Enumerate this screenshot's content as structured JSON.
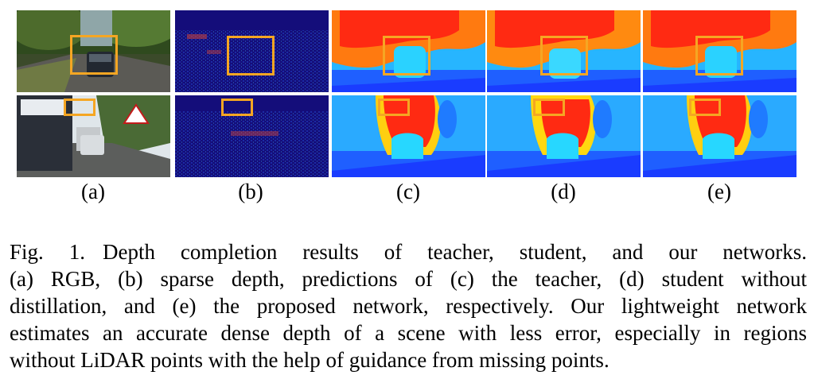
{
  "figure": {
    "panel_labels": [
      "(a)",
      "(b)",
      "(c)",
      "(d)",
      "(e)"
    ],
    "colors": {
      "box": "#f5a623",
      "sparse_bg": "#1a0f8c",
      "depth_far": "#1e5cff",
      "depth_mid": "#27d7ff",
      "depth_near": "#ff2a12"
    }
  },
  "caption": {
    "fig_label": "Fig. 1.",
    "lines": [
      "Depth completion results of teacher, student, and our networks.",
      "(a) RGB, (b) sparse depth, predictions of (c) the teacher, (d) student without",
      "distillation, and (e) the proposed network, respectively. Our lightweight network",
      "estimates an accurate dense depth of a scene with less error, especially in regions",
      "without LiDAR points with the help of guidance from missing points."
    ]
  }
}
